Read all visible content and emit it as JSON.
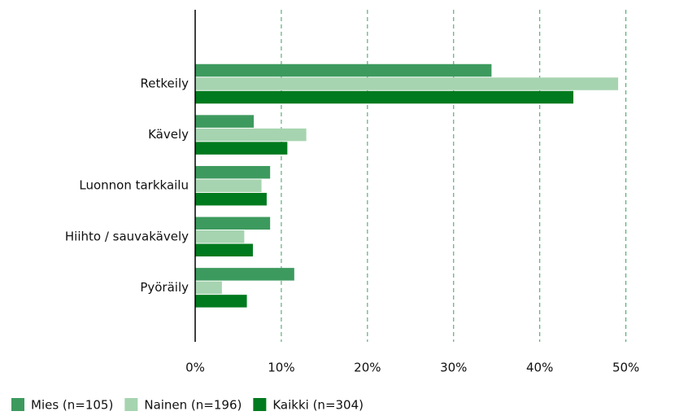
{
  "chart_data": {
    "type": "bar",
    "orientation": "horizontal",
    "categories": [
      "Retkeily",
      "Kävely",
      "Luonnon tarkkailu",
      "Hiihto / sauvakävely",
      "Pyöräily"
    ],
    "series": [
      {
        "name": "Mies (n=105)",
        "color": "#3d9a5e",
        "values": [
          34.4,
          6.8,
          8.7,
          8.7,
          11.5
        ]
      },
      {
        "name": "Nainen (n=196)",
        "color": "#a6d4b0",
        "values": [
          49.1,
          12.9,
          7.7,
          5.7,
          3.1
        ]
      },
      {
        "name": "Kaikki (n=304)",
        "color": "#007a1e",
        "values": [
          43.9,
          10.7,
          8.3,
          6.7,
          6.0
        ]
      }
    ],
    "xlim": [
      0,
      55.7
    ],
    "xticks": [
      {
        "value": 0,
        "label": "0%"
      },
      {
        "value": 10,
        "label": "10%"
      },
      {
        "value": 20,
        "label": "20%"
      },
      {
        "value": 30,
        "label": "30%"
      },
      {
        "value": 40,
        "label": "40%"
      },
      {
        "value": 50,
        "label": "50%"
      }
    ],
    "grid": true,
    "legend": "bottom"
  }
}
